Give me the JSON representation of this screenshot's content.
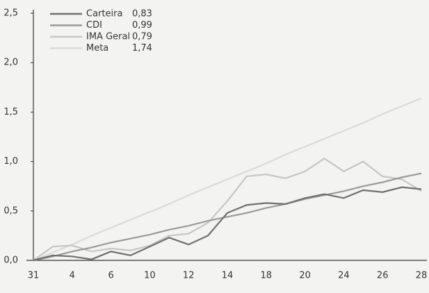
{
  "chart_data": {
    "type": "line",
    "categories": [
      "31",
      null,
      "4",
      null,
      "6",
      null,
      "10",
      null,
      "12",
      null,
      "14",
      null,
      "18",
      null,
      "20",
      null,
      "24",
      null,
      "26",
      null,
      "28"
    ],
    "series": [
      {
        "name": "Carteira",
        "color": "#6f6f6f",
        "total": {
          "value": 0.83,
          "label": "0,83"
        },
        "values": [
          0,
          0.05,
          0.04,
          0.01,
          0.09,
          0.05,
          0.14,
          0.23,
          0.16,
          0.25,
          0.48,
          0.56,
          0.58,
          0.57,
          0.63,
          0.67,
          0.63,
          0.71,
          0.69,
          0.74,
          0.72
        ]
      },
      {
        "name": "CDI",
        "color": "#9a9a9a",
        "total": {
          "value": 0.99,
          "label": "0,99"
        },
        "values": [
          0,
          0.04,
          0.09,
          0.13,
          0.18,
          0.22,
          0.26,
          0.31,
          0.35,
          0.4,
          0.44,
          0.48,
          0.53,
          0.57,
          0.62,
          0.66,
          0.7,
          0.75,
          0.79,
          0.84,
          0.88
        ]
      },
      {
        "name": "IMA Geral",
        "color": "#c6c6c6",
        "total": {
          "value": 0.79,
          "label": "0,79"
        },
        "values": [
          0,
          0.14,
          0.15,
          0.09,
          0.12,
          0.1,
          0.15,
          0.25,
          0.27,
          0.38,
          0.6,
          0.85,
          0.87,
          0.83,
          0.9,
          1.03,
          0.9,
          1.0,
          0.85,
          0.82,
          0.7
        ]
      },
      {
        "name": "Meta",
        "color": "#dadada",
        "total": {
          "value": 1.74,
          "label": "1,74"
        },
        "values": [
          0,
          0.08,
          0.16,
          0.25,
          0.33,
          0.41,
          0.49,
          0.57,
          0.66,
          0.74,
          0.82,
          0.9,
          0.98,
          1.07,
          1.15,
          1.23,
          1.31,
          1.39,
          1.48,
          1.56,
          1.64
        ]
      }
    ],
    "ylim": [
      0,
      2.5
    ],
    "yticks": [
      {
        "value": 0,
        "label": "0,0"
      },
      {
        "value": 0.5,
        "label": "0,5"
      },
      {
        "value": 1,
        "label": "1,0"
      },
      {
        "value": 1.5,
        "label": "1,5"
      },
      {
        "value": 2,
        "label": "2,0"
      },
      {
        "value": 2.5,
        "label": "2,5"
      }
    ],
    "legend": "upper left"
  }
}
